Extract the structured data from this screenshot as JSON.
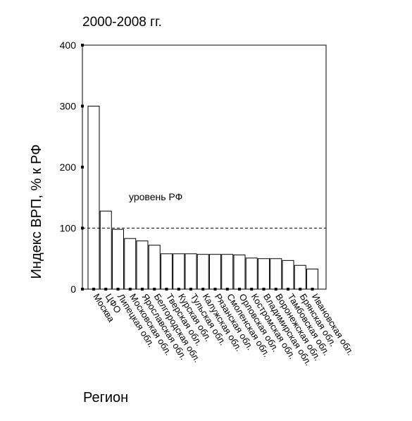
{
  "chart_data": {
    "type": "bar",
    "title": "2000-2008 гг.",
    "xlabel": "Регион",
    "ylabel": "Индекс ВРП, % к РФ",
    "ylim": [
      0,
      400
    ],
    "yticks": [
      0,
      100,
      200,
      300,
      400
    ],
    "grid": false,
    "categories": [
      "Москва",
      "ЦФО",
      "Липецкая обл.",
      "Московская обл.",
      "Ярославская обл.",
      "Белгородская обл.",
      "Тверская обл.",
      "Курская обл.",
      "Тульская обл.",
      "Калужская обл.",
      "Рязанская обл.",
      "Смоленская обл.",
      "Орловская обл.",
      "Костромская обл.",
      "Владимирская обл.",
      "Воронежская обл.",
      "Тамбовская обл.",
      "Брянская обл.",
      "Ивановская обл."
    ],
    "values": [
      300,
      128,
      98,
      83,
      79,
      72,
      58,
      58,
      58,
      57,
      57,
      57,
      56,
      51,
      50,
      50,
      47,
      39,
      33
    ],
    "reference_line": {
      "value": 100,
      "label": "уровень РФ"
    }
  }
}
